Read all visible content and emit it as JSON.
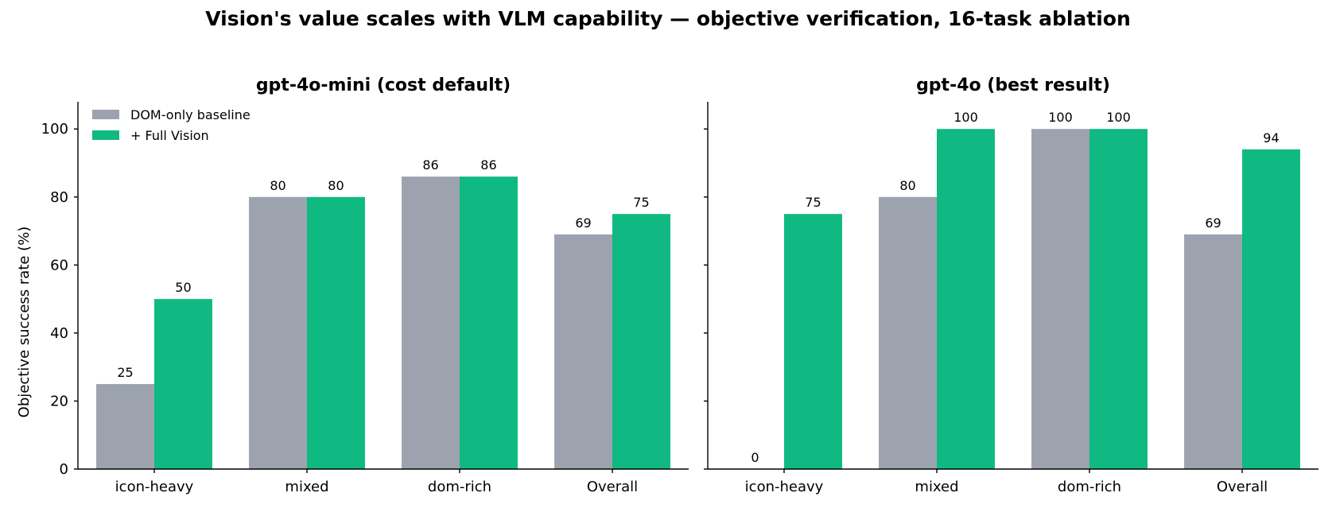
{
  "title": "Vision's value scales with VLM capability  —  objective verification, 16-task ablation",
  "ylabel": "Objective success rate (%)",
  "legend": [
    "DOM-only baseline",
    "+ Full Vision"
  ],
  "colors": {
    "baseline": "#9ca3af",
    "vision": "#10b981"
  },
  "chart_data": [
    {
      "type": "bar",
      "title": "gpt-4o-mini  (cost default)",
      "categories": [
        "icon-heavy",
        "mixed",
        "dom-rich",
        "Overall"
      ],
      "series": [
        {
          "name": "DOM-only baseline",
          "values": [
            25,
            80,
            86,
            69
          ]
        },
        {
          "name": "+ Full Vision",
          "values": [
            50,
            80,
            86,
            75
          ]
        }
      ],
      "ylim": [
        0,
        108
      ],
      "yticks": [
        0,
        20,
        40,
        60,
        80,
        100
      ],
      "ylabel": "Objective success rate (%)",
      "legend_position": "top-left"
    },
    {
      "type": "bar",
      "title": "gpt-4o  (best result)",
      "categories": [
        "icon-heavy",
        "mixed",
        "dom-rich",
        "Overall"
      ],
      "series": [
        {
          "name": "DOM-only baseline",
          "values": [
            0,
            80,
            100,
            69
          ]
        },
        {
          "name": "+ Full Vision",
          "values": [
            75,
            100,
            100,
            94
          ]
        }
      ],
      "ylim": [
        0,
        108
      ],
      "yticks": [
        0,
        20,
        40,
        60,
        80,
        100
      ]
    }
  ]
}
